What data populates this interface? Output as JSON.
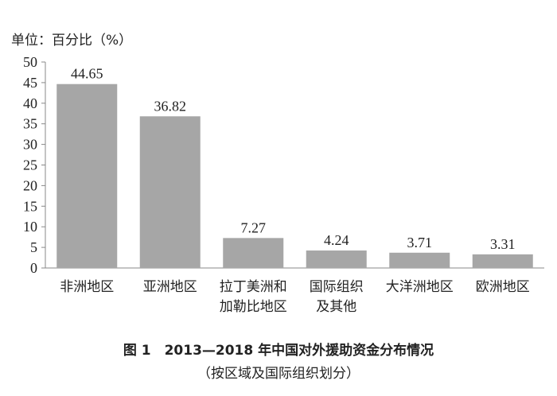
{
  "chart_data": {
    "type": "bar",
    "ylabel": "单位：百分比（%）",
    "categories": [
      [
        "非洲地区"
      ],
      [
        "亚洲地区"
      ],
      [
        "拉丁美洲和",
        "加勒比地区"
      ],
      [
        "国际组织",
        "及其他"
      ],
      [
        "大洋洲地区"
      ],
      [
        "欧洲地区"
      ]
    ],
    "values": [
      44.65,
      36.82,
      7.27,
      4.24,
      3.71,
      3.31
    ],
    "value_labels": [
      "44.65",
      "36.82",
      "7.27",
      "4.24",
      "3.71",
      "3.31"
    ],
    "ylim": [
      0,
      50
    ],
    "yticks": [
      0,
      5,
      10,
      15,
      20,
      25,
      30,
      35,
      40,
      45,
      50
    ],
    "grid": false,
    "bar_color": "#a6a6a6",
    "caption_line1": "图 1　2013—2018 年中国对外援助资金分布情况",
    "caption_line2": "（按区域及国际组织划分）"
  }
}
